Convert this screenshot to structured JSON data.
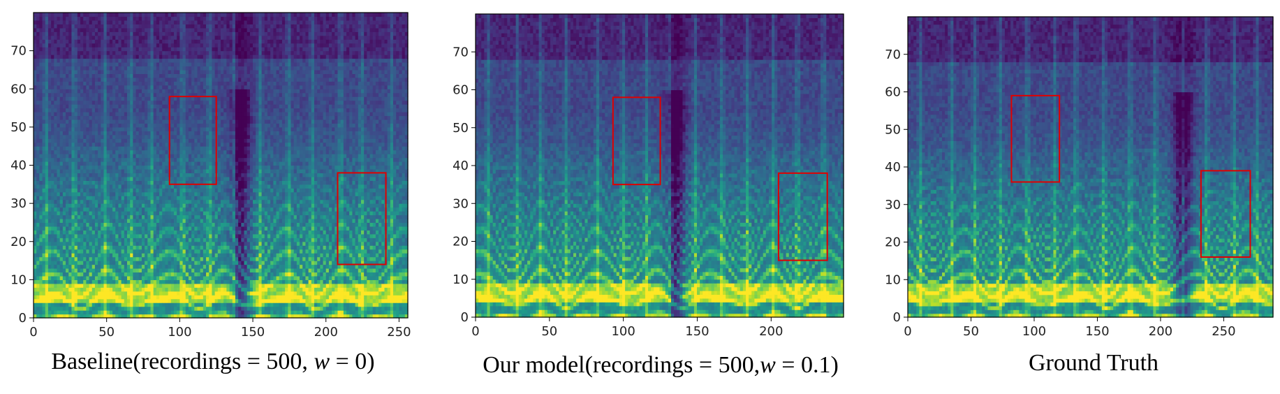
{
  "colors": {
    "viridis": [
      "#440154",
      "#482878",
      "#3e4989",
      "#31688e",
      "#26828e",
      "#1f9e89",
      "#35b779",
      "#6ece58",
      "#b5de2b",
      "#fde725"
    ],
    "box": "#e00000",
    "axis": "#000000"
  },
  "chart_data": [
    {
      "type": "heatmap",
      "caption_prefix": "Baseline(recordings = 500, ",
      "caption_var": "w",
      "caption_suffix": " = 0)",
      "xlim": [
        0,
        256
      ],
      "ylim": [
        0,
        80
      ],
      "xticks": [
        0,
        50,
        100,
        150,
        200,
        250
      ],
      "yticks": [
        0,
        10,
        20,
        30,
        40,
        50,
        60,
        70
      ],
      "highlight_boxes": [
        {
          "x": [
            93,
            125
          ],
          "y": [
            35,
            58
          ]
        },
        {
          "x": [
            208,
            241
          ],
          "y": [
            14,
            38
          ]
        }
      ]
    },
    {
      "type": "heatmap",
      "caption_prefix": "Our model(recordings = 500,",
      "caption_var": "w",
      "caption_suffix": " = 0.1)",
      "xlim": [
        0,
        249
      ],
      "ylim": [
        0,
        80
      ],
      "xticks": [
        0,
        50,
        100,
        150,
        200
      ],
      "yticks": [
        0,
        10,
        20,
        30,
        40,
        50,
        60,
        70
      ],
      "highlight_boxes": [
        {
          "x": [
            93,
            125
          ],
          "y": [
            35,
            58
          ]
        },
        {
          "x": [
            205,
            238
          ],
          "y": [
            15,
            38
          ]
        }
      ]
    },
    {
      "type": "heatmap",
      "caption_prefix": "Ground Truth",
      "caption_var": "",
      "caption_suffix": "",
      "xlim": [
        0,
        289
      ],
      "ylim": [
        0,
        80
      ],
      "xticks": [
        0,
        50,
        100,
        150,
        200,
        250
      ],
      "yticks": [
        0,
        10,
        20,
        30,
        40,
        50,
        60,
        70
      ],
      "highlight_boxes": [
        {
          "x": [
            82,
            120
          ],
          "y": [
            36,
            59
          ]
        },
        {
          "x": [
            232,
            271
          ],
          "y": [
            16,
            39
          ]
        }
      ]
    }
  ]
}
